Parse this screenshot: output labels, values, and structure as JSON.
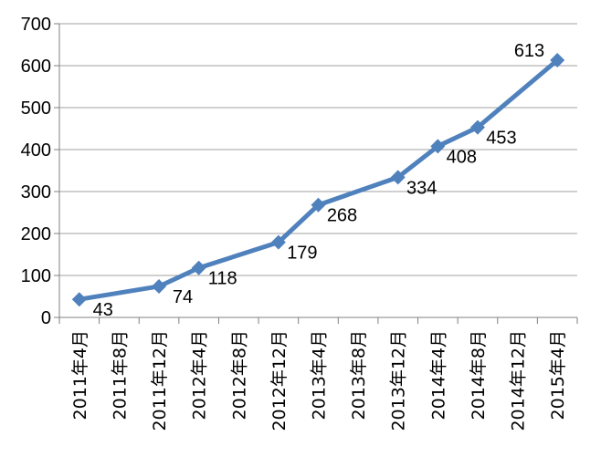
{
  "chart_data": {
    "type": "line",
    "title": "",
    "xlabel": "",
    "ylabel": "",
    "ylim": [
      0,
      700
    ],
    "yticks": [
      0,
      100,
      200,
      300,
      400,
      500,
      600,
      700
    ],
    "grid": true,
    "legend": "none",
    "categories": [
      "2011年4月",
      "2011年8月",
      "2011年12月",
      "2012年4月",
      "2012年8月",
      "2012年12月",
      "2013年4月",
      "2013年8月",
      "2013年12月",
      "2014年4月",
      "2014年8月",
      "2014年12月",
      "2015年4月"
    ],
    "points": [
      {
        "x": "2011年4月",
        "y": 43
      },
      {
        "x": "2011年12月",
        "y": 74
      },
      {
        "x": "2012年4月",
        "y": 118
      },
      {
        "x": "2012年12月",
        "y": 179
      },
      {
        "x": "2013年4月",
        "y": 268
      },
      {
        "x": "2013年12月",
        "y": 334
      },
      {
        "x": "2014年4月",
        "y": 408
      },
      {
        "x": "2014年8月",
        "y": 453
      },
      {
        "x": "2015年4月",
        "y": 613
      }
    ],
    "colors": {
      "line": "#4F81BD",
      "grid": "#A0A0A0",
      "axis": "#808080"
    }
  }
}
